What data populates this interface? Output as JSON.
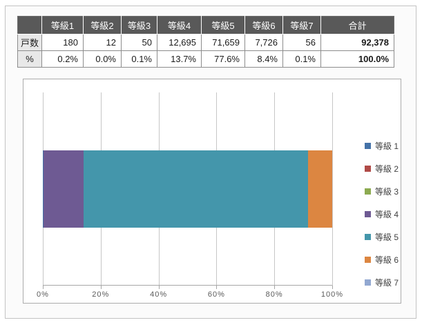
{
  "table": {
    "corner_label": "",
    "columns": [
      "等級1",
      "等級2",
      "等級3",
      "等級4",
      "等級5",
      "等級6",
      "等級7",
      "合計"
    ],
    "rows": [
      {
        "label": "戸数",
        "values": [
          "180",
          "12",
          "50",
          "12,695",
          "71,659",
          "7,726",
          "56"
        ],
        "total": "92,378"
      },
      {
        "label": "%",
        "values": [
          "0.2%",
          "0.0%",
          "0.1%",
          "13.7%",
          "77.6%",
          "8.4%",
          "0.1%"
        ],
        "total": "100.0%"
      }
    ]
  },
  "chart_data": {
    "type": "bar",
    "orientation": "horizontal",
    "stacked": true,
    "categories": [
      ""
    ],
    "series": [
      {
        "name": "等級1",
        "legend_label": "等級 1",
        "value": 0.2,
        "count": 180,
        "color": "#4472a8"
      },
      {
        "name": "等級2",
        "legend_label": "等級 2",
        "value": 0.0,
        "count": 12,
        "color": "#b04a47"
      },
      {
        "name": "等級3",
        "legend_label": "等級 3",
        "value": 0.1,
        "count": 50,
        "color": "#8caa50"
      },
      {
        "name": "等級4",
        "legend_label": "等級 4",
        "value": 13.7,
        "count": 12695,
        "color": "#6e5a93"
      },
      {
        "name": "等級5",
        "legend_label": "等級 5",
        "value": 77.6,
        "count": 71659,
        "color": "#4496ab"
      },
      {
        "name": "等級6",
        "legend_label": "等級 6",
        "value": 8.4,
        "count": 7726,
        "color": "#dc8641"
      },
      {
        "name": "等級7",
        "legend_label": "等級 7",
        "value": 0.1,
        "count": 56,
        "color": "#92a8d1"
      }
    ],
    "total_count": 92378,
    "title": "",
    "xlabel": "",
    "ylabel": "",
    "x_ticks": [
      "0%",
      "20%",
      "40%",
      "60%",
      "80%",
      "100%"
    ],
    "xlim": [
      0,
      100
    ],
    "grid": "vertical",
    "legend_position": "right"
  },
  "colors": {
    "header_bg": "#595959",
    "header_text": "#ffffff",
    "row_label_bg": "#e8e8e8",
    "table_border": "#8c8c8c",
    "gridline": "#c6c6c6",
    "axis": "#a6a6a6",
    "frame_border": "#c3c3c3",
    "chart_border": "#ababab"
  }
}
